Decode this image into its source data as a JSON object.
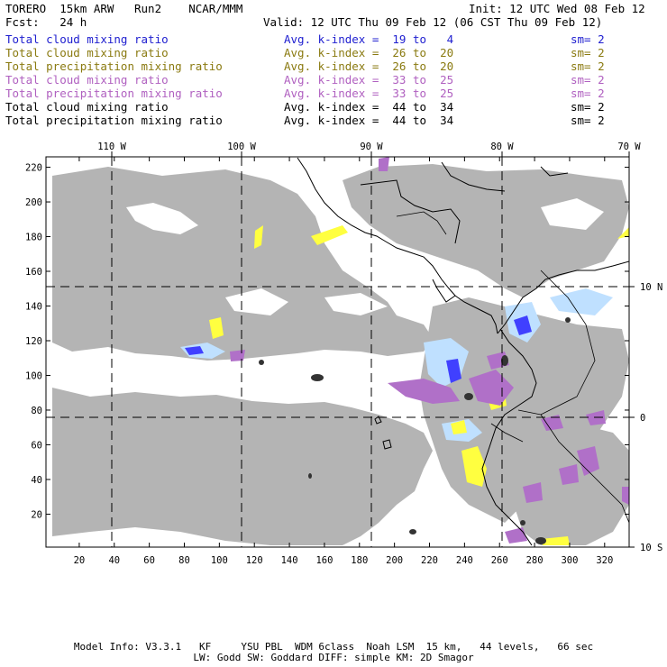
{
  "header": {
    "model": "TORERO  15km ARW   Run2    NCAR/MMM",
    "init": "Init: 12 UTC Wed 08 Feb 12",
    "fcst": "Fcst:   24 h",
    "valid": "Valid: 12 UTC Thu 09 Feb 12 (06 CST Thu 09 Feb 12)"
  },
  "legend": [
    {
      "field": "Total cloud mixing ratio",
      "avg": "Avg. k-index =  19 to   4",
      "sm": "sm= 2",
      "color": "#2020d0"
    },
    {
      "field": "Total cloud mixing ratio",
      "avg": "Avg. k-index =  26 to  20",
      "sm": "sm= 2",
      "color": "#8a7a10"
    },
    {
      "field": "Total precipitation mixing ratio",
      "avg": "Avg. k-index =  26 to  20",
      "sm": "sm= 2",
      "color": "#8a7a10"
    },
    {
      "field": "Total cloud mixing ratio",
      "avg": "Avg. k-index =  33 to  25",
      "sm": "sm= 2",
      "color": "#b060c0"
    },
    {
      "field": "Total precipitation mixing ratio",
      "avg": "Avg. k-index =  33 to  25",
      "sm": "sm= 2",
      "color": "#b060c0"
    },
    {
      "field": "Total cloud mixing ratio",
      "avg": "Avg. k-index =  44 to  34",
      "sm": "sm= 2",
      "color": "#000000"
    },
    {
      "field": "Total precipitation mixing ratio",
      "avg": "Avg. k-index =  44 to  34",
      "sm": "sm= 2",
      "color": "#000000"
    }
  ],
  "map": {
    "lon_labels": [
      "110 W",
      "100 W",
      "90 W",
      "80 W",
      "70 W"
    ],
    "lat_labels": [
      "10 N",
      "0",
      "10 S"
    ],
    "x_ticks": [
      "20",
      "40",
      "60",
      "80",
      "100",
      "120",
      "140",
      "160",
      "180",
      "200",
      "220",
      "240",
      "260",
      "280",
      "300",
      "320"
    ],
    "y_ticks": [
      "20",
      "40",
      "60",
      "80",
      "100",
      "120",
      "140",
      "160",
      "180",
      "200",
      "220"
    ],
    "x_range": [
      1,
      334
    ],
    "y_range": [
      1,
      226
    ],
    "colors": {
      "cloud_gray": "#b4b4b4",
      "blue": "#4040ff",
      "light_blue": "#bfe0ff",
      "yellow": "#ffff40",
      "purple": "#b070c8",
      "black": "#333333"
    }
  },
  "footer": {
    "line1": "Model Info: V3.3.1   KF     YSU PBL  WDM 6class  Noah LSM  15 km,   44 levels,   66 sec",
    "line2": "LW: Godd SW: Goddard DIFF: simple KM: 2D Smagor"
  }
}
